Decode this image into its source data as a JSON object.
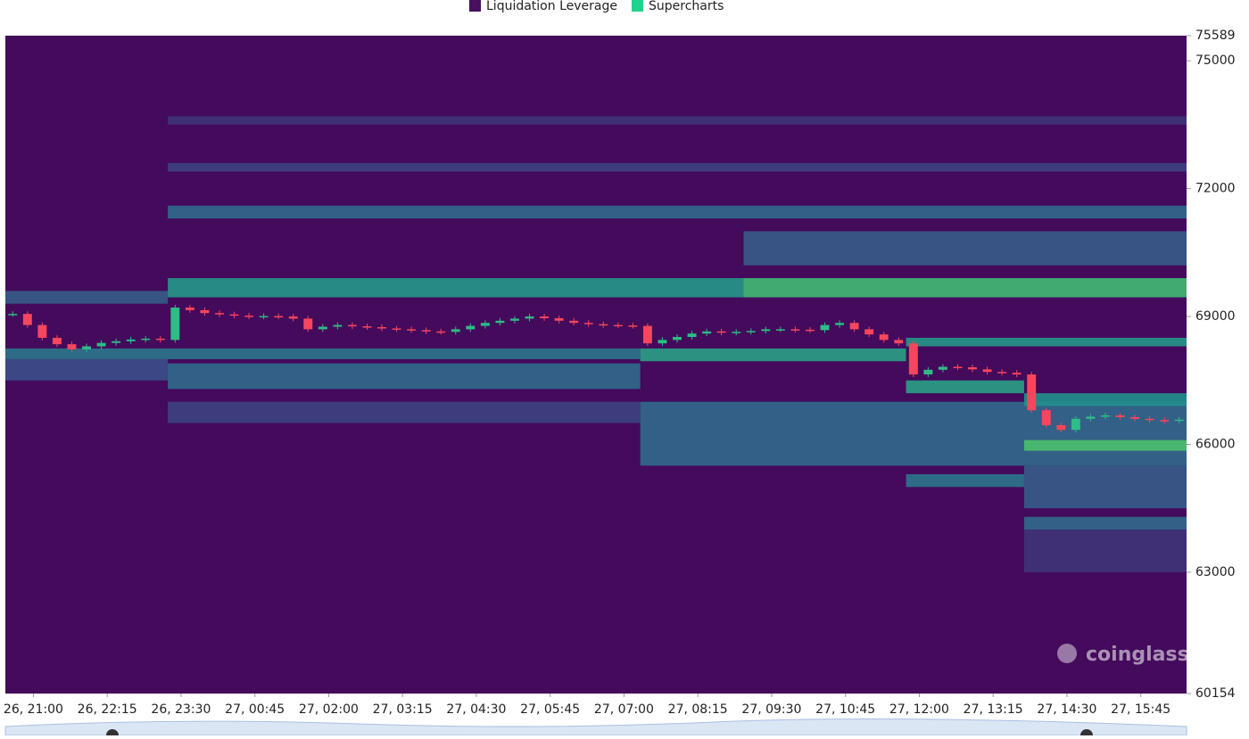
{
  "chart_data": {
    "type": "heatmap",
    "legend": [
      {
        "name": "Liquidation Leverage",
        "color": "#4a0f5e"
      },
      {
        "name": "Supercharts",
        "color": "#1fd38f"
      }
    ],
    "watermark": "coinglass",
    "background": "#440a5c",
    "colorscale": [
      "#440a5c",
      "#3b4f8a",
      "#21908c",
      "#35b779",
      "#6ccd5a"
    ],
    "up_color": "#2ebd85",
    "down_color": "#f6465d",
    "xlim": [
      0,
      80
    ],
    "xticks": [
      {
        "value": 1.9,
        "label": "26, 21:00"
      },
      {
        "value": 6.9,
        "label": "26, 22:15"
      },
      {
        "value": 11.9,
        "label": "26, 23:30"
      },
      {
        "value": 16.9,
        "label": "27, 00:45"
      },
      {
        "value": 21.9,
        "label": "27, 02:00"
      },
      {
        "value": 26.9,
        "label": "27, 03:15"
      },
      {
        "value": 31.9,
        "label": "27, 04:30"
      },
      {
        "value": 36.9,
        "label": "27, 05:45"
      },
      {
        "value": 41.9,
        "label": "27, 07:00"
      },
      {
        "value": 46.9,
        "label": "27, 08:15"
      },
      {
        "value": 51.9,
        "label": "27, 09:30"
      },
      {
        "value": 56.9,
        "label": "27, 10:45"
      },
      {
        "value": 61.9,
        "label": "27, 12:00"
      },
      {
        "value": 66.9,
        "label": "27, 13:15"
      },
      {
        "value": 71.9,
        "label": "27, 14:30"
      },
      {
        "value": 76.9,
        "label": "27, 15:45"
      }
    ],
    "ylim": [
      60154,
      75589
    ],
    "yticks": [
      75589,
      75000,
      72000,
      69000,
      66000,
      63000,
      60154
    ],
    "bands": [
      {
        "low": 65500,
        "high": 67000,
        "from": 43,
        "to": 80,
        "intensity": 0.35
      },
      {
        "low": 66500,
        "high": 67000,
        "from": 11,
        "to": 43,
        "intensity": 0.2
      },
      {
        "low": 63000,
        "high": 64000,
        "from": 69,
        "to": 80,
        "intensity": 0.15
      },
      {
        "low": 73500,
        "high": 73700,
        "from": 11,
        "to": 80,
        "intensity": 0.15
      },
      {
        "low": 72400,
        "high": 72600,
        "from": 11,
        "to": 80,
        "intensity": 0.2
      },
      {
        "low": 71300,
        "high": 71600,
        "from": 11,
        "to": 80,
        "intensity": 0.35
      },
      {
        "low": 70200,
        "high": 71000,
        "from": 50,
        "to": 80,
        "intensity": 0.3
      },
      {
        "low": 69450,
        "high": 69900,
        "from": 11,
        "to": 50,
        "intensity": 0.55
      },
      {
        "low": 69450,
        "high": 69900,
        "from": 50,
        "to": 80,
        "intensity": 0.8
      },
      {
        "low": 69300,
        "high": 69600,
        "from": 0,
        "to": 11,
        "intensity": 0.3
      },
      {
        "low": 67500,
        "high": 68000,
        "from": 0,
        "to": 11,
        "intensity": 0.25
      },
      {
        "low": 67300,
        "high": 67900,
        "from": 11,
        "to": 43,
        "intensity": 0.35
      },
      {
        "low": 68000,
        "high": 68250,
        "from": 0,
        "to": 43,
        "intensity": 0.4
      },
      {
        "low": 67950,
        "high": 68250,
        "from": 43,
        "to": 61,
        "intensity": 0.6
      },
      {
        "low": 68300,
        "high": 68500,
        "from": 61,
        "to": 80,
        "intensity": 0.55
      },
      {
        "low": 67200,
        "high": 67500,
        "from": 61,
        "to": 69,
        "intensity": 0.6
      },
      {
        "low": 65000,
        "high": 65300,
        "from": 61,
        "to": 69,
        "intensity": 0.4
      },
      {
        "low": 66900,
        "high": 67200,
        "from": 69,
        "to": 80,
        "intensity": 0.5
      },
      {
        "low": 64500,
        "high": 65500,
        "from": 69,
        "to": 80,
        "intensity": 0.3
      },
      {
        "low": 64000,
        "high": 64300,
        "from": 69,
        "to": 80,
        "intensity": 0.35
      },
      {
        "low": 65850,
        "high": 66100,
        "from": 69,
        "to": 80,
        "intensity": 0.85
      }
    ],
    "close": [
      69060,
      68800,
      68500,
      68350,
      68230,
      68300,
      68380,
      68420,
      68460,
      68480,
      68450,
      69210,
      69150,
      69080,
      69050,
      69020,
      69000,
      69010,
      69000,
      68950,
      68700,
      68760,
      68800,
      68770,
      68750,
      68720,
      68700,
      68680,
      68650,
      68640,
      68700,
      68780,
      68850,
      68900,
      68950,
      69000,
      68960,
      68900,
      68850,
      68820,
      68800,
      68790,
      68780,
      68370,
      68450,
      68520,
      68600,
      68650,
      68620,
      68640,
      68660,
      68700,
      68700,
      68690,
      68680,
      68800,
      68850,
      68700,
      68580,
      68450,
      68370,
      67640,
      67750,
      67820,
      67810,
      67760,
      67700,
      67680,
      67640,
      66800,
      66450,
      66340,
      66600,
      66650,
      66680,
      66640,
      66600,
      66570,
      66550,
      66580
    ]
  }
}
